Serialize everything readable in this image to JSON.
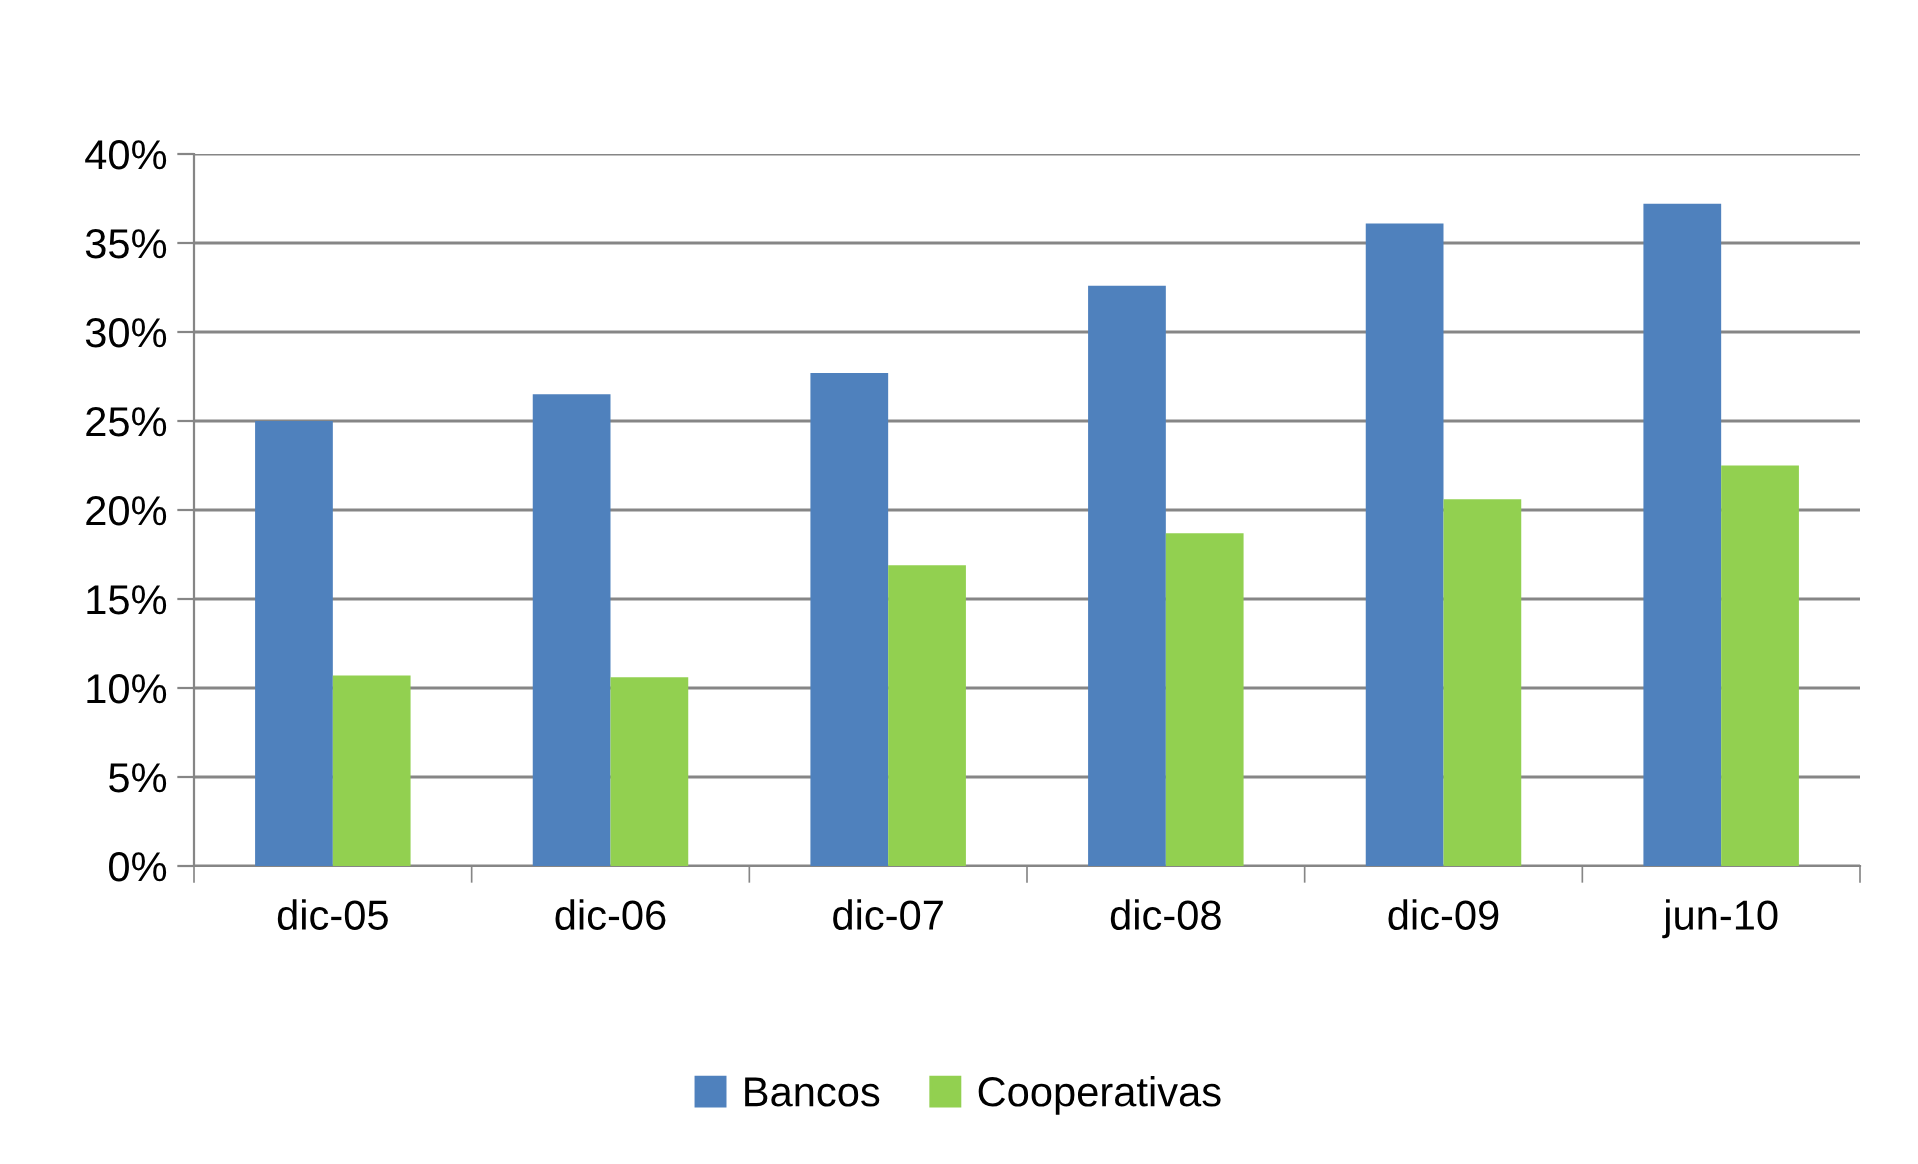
{
  "chart_data": {
    "type": "bar",
    "categories": [
      "dic-05",
      "dic-06",
      "dic-07",
      "dic-08",
      "dic-09",
      "jun-10"
    ],
    "series": [
      {
        "name": "Bancos",
        "color": "#4f81bd",
        "values": [
          25.0,
          26.5,
          27.7,
          32.6,
          36.1,
          37.2
        ]
      },
      {
        "name": "Cooperativas",
        "color": "#92d050",
        "values": [
          10.7,
          10.6,
          16.9,
          18.7,
          20.6,
          22.5
        ]
      }
    ],
    "ylim": [
      0,
      40
    ],
    "yticks": [
      {
        "value": 0,
        "label": "0%"
      },
      {
        "value": 5,
        "label": "5%"
      },
      {
        "value": 10,
        "label": "10%"
      },
      {
        "value": 15,
        "label": "15%"
      },
      {
        "value": 20,
        "label": "20%"
      },
      {
        "value": 25,
        "label": "25%"
      },
      {
        "value": 30,
        "label": "30%"
      },
      {
        "value": 35,
        "label": "35%"
      },
      {
        "value": 40,
        "label": "40%"
      }
    ],
    "grid": "y",
    "legend": "bottom"
  }
}
